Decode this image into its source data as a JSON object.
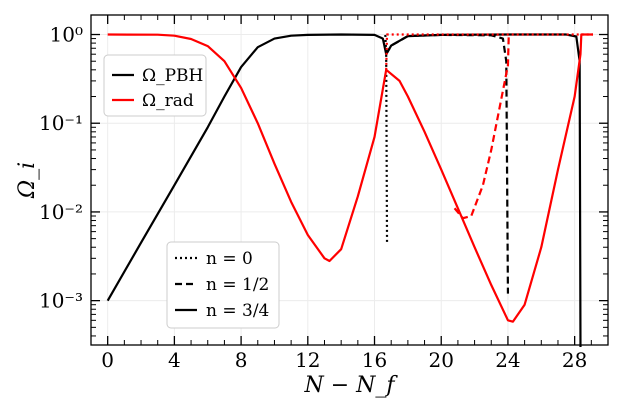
{
  "chart_data": {
    "type": "line",
    "xlabel": "N − N_f",
    "ylabel": "Ω_i",
    "xlim": [
      -1,
      30
    ],
    "ylim_log10": [
      -3.5,
      0.22
    ],
    "y_scale": "log",
    "grid": true,
    "x_ticks": [
      0,
      4,
      8,
      12,
      16,
      20,
      24,
      28
    ],
    "x_tick_labels": [
      "0",
      "4",
      "8",
      "12",
      "16",
      "20",
      "24",
      "28"
    ],
    "y_ticks": [
      1,
      0.1,
      0.01,
      0.001
    ],
    "y_tick_labels": [
      "10⁰",
      "10⁻¹",
      "10⁻²",
      "10⁻³"
    ],
    "colors": {
      "pbh": "#000000",
      "rad": "#ff0000"
    },
    "legend_species": {
      "placement": "upper-left",
      "items": [
        {
          "label": "Ω_PBH",
          "color": "#000000"
        },
        {
          "label": "Ω_rad",
          "color": "#ff0000"
        }
      ]
    },
    "legend_n": {
      "placement": "lower-left",
      "items": [
        {
          "label": "n = 0",
          "style": "dotted"
        },
        {
          "label": "n = 1/2",
          "style": "dashed"
        },
        {
          "label": "n = 3/4",
          "style": "solid"
        }
      ]
    },
    "series": [
      {
        "species": "pbh",
        "n": "3/4",
        "style": "solid",
        "color": "#000000",
        "points": [
          [
            0,
            0.001
          ],
          [
            2,
            0.0045
          ],
          [
            4,
            0.02
          ],
          [
            6,
            0.09
          ],
          [
            7,
            0.2
          ],
          [
            8,
            0.43
          ],
          [
            9,
            0.72
          ],
          [
            10,
            0.9
          ],
          [
            11,
            0.97
          ],
          [
            12,
            0.99
          ],
          [
            14,
            1.0
          ],
          [
            16,
            0.99
          ],
          [
            16.5,
            0.9
          ],
          [
            16.7,
            0.6
          ],
          [
            17,
            0.75
          ],
          [
            18,
            0.96
          ],
          [
            20,
            0.99
          ],
          [
            24,
            1.0
          ],
          [
            27.5,
            1.0
          ],
          [
            28.1,
            0.95
          ],
          [
            28.3,
            0.5
          ],
          [
            28.35,
            0.0003
          ]
        ]
      },
      {
        "species": "pbh",
        "n": "1/2",
        "style": "dashed",
        "color": "#000000",
        "points": [
          [
            16.7,
            0.6
          ],
          [
            17,
            0.75
          ],
          [
            18,
            0.96
          ],
          [
            20,
            0.99
          ],
          [
            23,
            0.98
          ],
          [
            23.7,
            0.9
          ],
          [
            23.9,
            0.5
          ],
          [
            24,
            0.0012
          ]
        ]
      },
      {
        "species": "pbh",
        "n": "0",
        "style": "dotted",
        "color": "#000000",
        "points": [
          [
            16.65,
            0.99
          ],
          [
            16.7,
            0.6
          ],
          [
            16.75,
            0.0045
          ]
        ]
      },
      {
        "species": "rad",
        "n": "3/4",
        "style": "solid",
        "color": "#ff0000",
        "points": [
          [
            0,
            1.0
          ],
          [
            3,
            0.995
          ],
          [
            4,
            0.97
          ],
          [
            5,
            0.89
          ],
          [
            6,
            0.74
          ],
          [
            7,
            0.5
          ],
          [
            8,
            0.25
          ],
          [
            9,
            0.1
          ],
          [
            10,
            0.035
          ],
          [
            11,
            0.013
          ],
          [
            12,
            0.0055
          ],
          [
            13,
            0.003
          ],
          [
            13.3,
            0.0028
          ],
          [
            14,
            0.0038
          ],
          [
            15,
            0.015
          ],
          [
            16,
            0.07
          ],
          [
            16.7,
            0.4
          ],
          [
            17.5,
            0.3
          ],
          [
            18,
            0.2
          ],
          [
            19,
            0.08
          ],
          [
            20,
            0.03
          ],
          [
            21,
            0.011
          ],
          [
            22,
            0.004
          ],
          [
            23,
            0.0015
          ],
          [
            24,
            0.0006
          ],
          [
            24.3,
            0.00058
          ],
          [
            25,
            0.0009
          ],
          [
            26,
            0.004
          ],
          [
            27,
            0.03
          ],
          [
            28,
            0.2
          ],
          [
            28.35,
            0.6
          ],
          [
            28.4,
            1.0
          ],
          [
            29.1,
            1.0
          ]
        ]
      },
      {
        "species": "rad",
        "n": "1/2",
        "style": "dashed",
        "color": "#ff0000",
        "points": [
          [
            20.8,
            0.011
          ],
          [
            21.3,
            0.0085
          ],
          [
            21.8,
            0.009
          ],
          [
            22.5,
            0.02
          ],
          [
            23,
            0.05
          ],
          [
            23.5,
            0.15
          ],
          [
            24,
            0.45
          ],
          [
            24.05,
            1.0
          ]
        ]
      },
      {
        "species": "rad",
        "n": "0",
        "style": "dotted",
        "color": "#ff0000",
        "points": [
          [
            16.7,
            0.4
          ],
          [
            16.75,
            1.0
          ],
          [
            29.1,
            1.0
          ]
        ]
      }
    ]
  }
}
